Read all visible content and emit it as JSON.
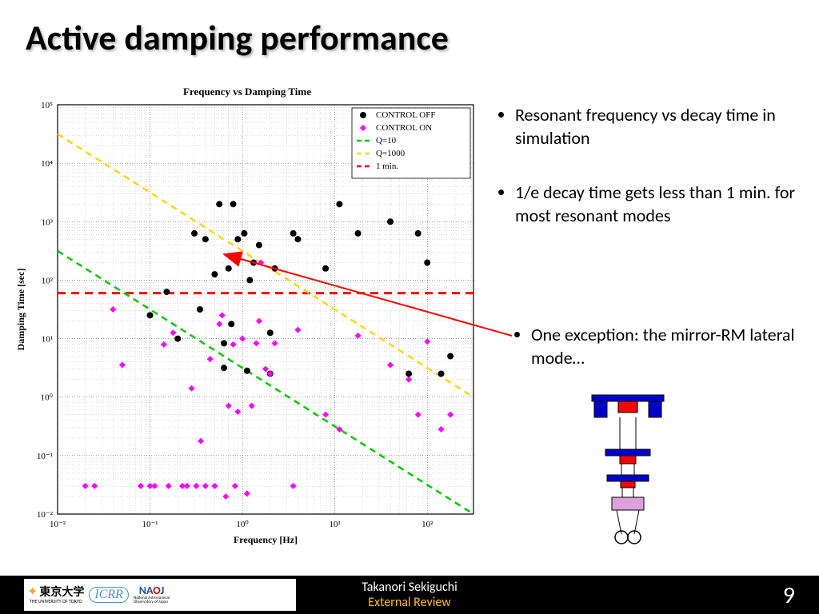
{
  "title": "Active damping performance",
  "chart": {
    "title": "Frequency vs Damping Time",
    "xlabel": "Frequency [Hz]",
    "ylabel": "Damping Time [sec]",
    "title_fontsize": 13,
    "label_fontsize": 12,
    "x_log_min": -2,
    "x_log_max": 2.5,
    "y_log_min": -2,
    "y_log_max": 5,
    "background": "#ffffff",
    "grid_major_color": "#000000",
    "grid_minor_color": "#555555",
    "legend": {
      "items": [
        {
          "label": "CONTROL OFF",
          "type": "marker-circle",
          "color": "#000000"
        },
        {
          "label": "CONTROL ON",
          "type": "marker-diamond",
          "color": "#ff00ff"
        },
        {
          "label": "Q=10",
          "type": "line-dash",
          "color": "#00cc00"
        },
        {
          "label": "Q=1000",
          "type": "line-dash",
          "color": "#ffd700"
        },
        {
          "label": "1 min.",
          "type": "line-dash",
          "color": "#ff0000"
        }
      ],
      "font_size": 11
    },
    "series_off": {
      "color": "#000000",
      "marker": "circle",
      "size": 8,
      "points_log": [
        [
          -1.0,
          1.4
        ],
        [
          -0.82,
          1.8
        ],
        [
          -0.7,
          1.0
        ],
        [
          -0.52,
          2.8
        ],
        [
          -0.46,
          1.5
        ],
        [
          -0.4,
          2.7
        ],
        [
          -0.3,
          2.1
        ],
        [
          -0.25,
          3.3
        ],
        [
          -0.2,
          0.5
        ],
        [
          -0.15,
          2.2
        ],
        [
          -0.1,
          3.3
        ],
        [
          -0.05,
          2.7
        ],
        [
          0.02,
          2.8
        ],
        [
          0.08,
          2.0
        ],
        [
          0.12,
          2.3
        ],
        [
          0.18,
          2.6
        ],
        [
          0.3,
          0.4
        ],
        [
          0.35,
          2.2
        ],
        [
          0.55,
          2.8
        ],
        [
          0.6,
          2.7
        ],
        [
          0.9,
          2.2
        ],
        [
          1.05,
          3.3
        ],
        [
          1.25,
          2.8
        ],
        [
          1.6,
          3.0
        ],
        [
          1.8,
          0.4
        ],
        [
          1.9,
          2.8
        ],
        [
          2.0,
          2.3
        ],
        [
          2.15,
          0.4
        ],
        [
          2.25,
          0.7
        ],
        [
          -0.2,
          0.92
        ],
        [
          0.05,
          0.45
        ],
        [
          0.3,
          1.1
        ],
        [
          -0.12,
          1.25
        ]
      ]
    },
    "series_on": {
      "color": "#ff00ff",
      "marker": "diamond",
      "size": 8,
      "points_log": [
        [
          -1.7,
          -1.52
        ],
        [
          -1.6,
          -1.52
        ],
        [
          -1.4,
          1.5
        ],
        [
          -1.3,
          0.55
        ],
        [
          -1.1,
          -1.52
        ],
        [
          -1.0,
          -1.52
        ],
        [
          -0.95,
          -1.52
        ],
        [
          -0.85,
          0.9
        ],
        [
          -0.8,
          -1.52
        ],
        [
          -0.75,
          1.1
        ],
        [
          -0.65,
          -1.52
        ],
        [
          -0.6,
          -1.52
        ],
        [
          -0.55,
          0.15
        ],
        [
          -0.5,
          -1.52
        ],
        [
          -0.45,
          -0.75
        ],
        [
          -0.4,
          -1.52
        ],
        [
          -0.35,
          0.65
        ],
        [
          -0.3,
          -1.52
        ],
        [
          -0.25,
          1.25
        ],
        [
          -0.22,
          1.4
        ],
        [
          -0.18,
          -1.7
        ],
        [
          -0.15,
          -0.15
        ],
        [
          -0.1,
          0.9
        ],
        [
          -0.08,
          -1.52
        ],
        [
          -0.05,
          -0.25
        ],
        [
          0.0,
          1.0
        ],
        [
          0.05,
          -1.65
        ],
        [
          0.1,
          -0.15
        ],
        [
          0.15,
          0.92
        ],
        [
          0.18,
          1.3
        ],
        [
          0.2,
          2.3
        ],
        [
          0.25,
          0.48
        ],
        [
          0.3,
          0.4
        ],
        [
          0.35,
          0.92
        ],
        [
          0.55,
          -1.52
        ],
        [
          0.6,
          1.15
        ],
        [
          0.9,
          -0.3
        ],
        [
          1.05,
          -0.55
        ],
        [
          1.25,
          1.05
        ],
        [
          1.6,
          0.55
        ],
        [
          1.8,
          0.3
        ],
        [
          1.9,
          -0.3
        ],
        [
          2.0,
          0.95
        ],
        [
          2.15,
          -0.55
        ],
        [
          2.25,
          -0.3
        ]
      ]
    },
    "ref_lines": {
      "q10": {
        "color": "#00cc00",
        "dash": "8,6",
        "width": 2.5,
        "y_at_xmin_log": 2.5,
        "y_at_xmax_log": -2.0
      },
      "q1000": {
        "color": "#ffd700",
        "dash": "8,6",
        "width": 2.5,
        "y_at_xmin_log": 4.5,
        "y_at_xmax_log": 0.0
      },
      "one_min": {
        "color": "#ff0000",
        "dash": "10,7",
        "width": 3,
        "y_log": 1.778
      }
    },
    "xticks": [
      {
        "v": -2,
        "l": "10⁻²"
      },
      {
        "v": -1,
        "l": "10⁻¹"
      },
      {
        "v": 0,
        "l": "10⁰"
      },
      {
        "v": 1,
        "l": "10¹"
      },
      {
        "v": 2,
        "l": "10²"
      }
    ],
    "yticks": [
      {
        "v": -2,
        "l": "10⁻²"
      },
      {
        "v": -1,
        "l": "10⁻¹"
      },
      {
        "v": 0,
        "l": "10⁰"
      },
      {
        "v": 1,
        "l": "10¹"
      },
      {
        "v": 2,
        "l": "10²"
      },
      {
        "v": 3,
        "l": "10³"
      },
      {
        "v": 4,
        "l": "10⁴"
      },
      {
        "v": 5,
        "l": "10⁵"
      }
    ]
  },
  "bullets": [
    "Resonant frequency vs decay time in simulation",
    "1/e decay time gets less than 1 min. for most resonant modes"
  ],
  "exception": "One exception: the mirror-RM lateral mode…",
  "arrow": {
    "color": "#ff0000",
    "width": 2
  },
  "pendulum": {
    "top_blue": "#0000cc",
    "red": "#ff0000",
    "violet": "#dda0dd",
    "line": "#000000"
  },
  "footer": {
    "author": "Takanori Sekiguchi",
    "subtitle": "External Review",
    "subtitle_color": "#ffc000",
    "page": "9",
    "logos": [
      {
        "name": "utokyo",
        "text": "東京大学",
        "sub": "THE UNIVERSITY OF TOKYO",
        "color": "#f5a623"
      },
      {
        "name": "icrr",
        "text": "ICRR",
        "color": "#4a90d9"
      },
      {
        "name": "naoj",
        "text": "NAOJ",
        "color": "#1e50a2"
      }
    ]
  }
}
